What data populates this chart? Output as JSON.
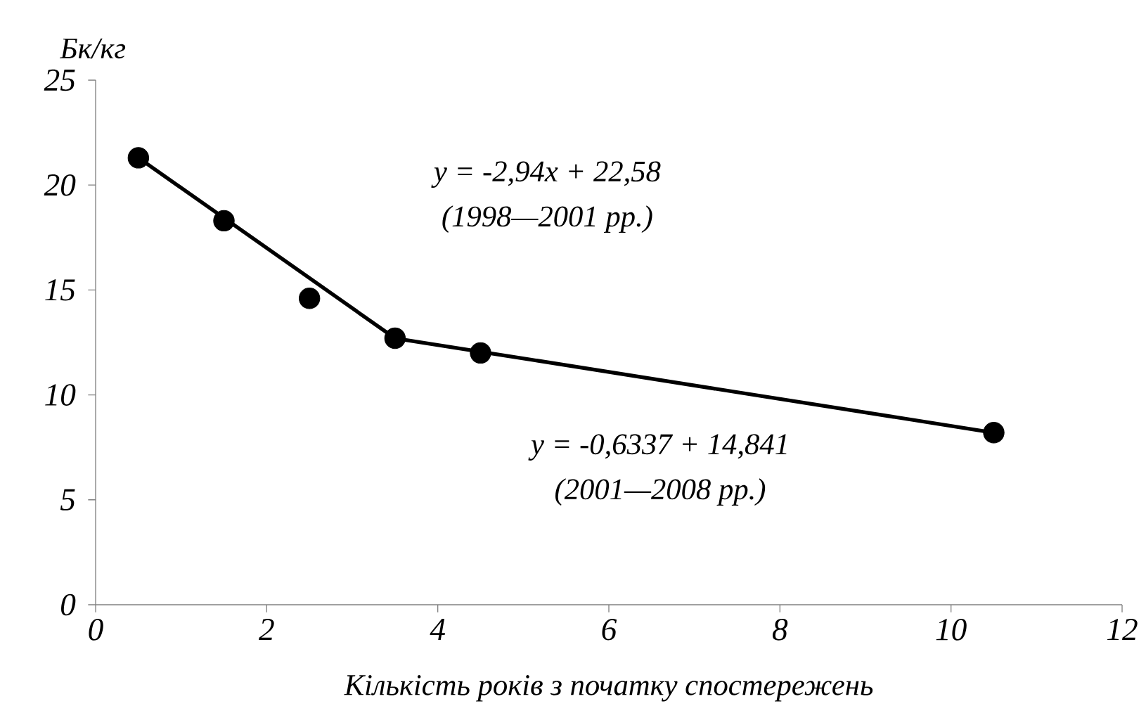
{
  "chart_data": {
    "type": "scatter",
    "xlabel": "Кількість років з початку спостережень",
    "ylabel": "Бк/кг",
    "xlim": [
      0,
      12
    ],
    "xticks": [
      0,
      2,
      4,
      6,
      8,
      10,
      12
    ],
    "ylim": [
      0,
      25
    ],
    "yticks": [
      0,
      5,
      10,
      15,
      20,
      25
    ],
    "series": [
      {
        "type": "line",
        "color": "#000000",
        "marker": "none",
        "line_style": "solid",
        "x": [
          0.5,
          3.5
        ],
        "values": [
          21.3,
          12.7
        ]
      },
      {
        "type": "line",
        "color": "#000000",
        "marker": "none",
        "line_style": "solid",
        "x": [
          3.5,
          10.5
        ],
        "values": [
          12.7,
          8.2
        ]
      },
      {
        "color": "#000000",
        "marker": "circle",
        "x": [
          0.5,
          1.5,
          2.5,
          3.5,
          4.5,
          10.5
        ],
        "values": [
          21.3,
          18.3,
          14.6,
          12.7,
          12.0,
          8.2
        ]
      }
    ],
    "annotations": [
      "y = -2,94x + 22,58",
      "(1998—2001 рр.)",
      "y = -0,6337 + 14,841",
      "(2001—2008 рр.)"
    ]
  }
}
